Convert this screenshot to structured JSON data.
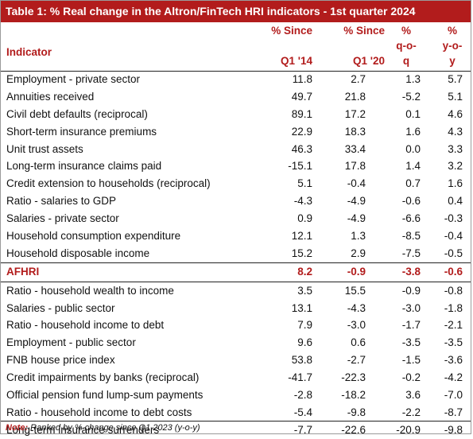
{
  "title": "Table 1: % Real change in the Altron/FinTech HRI indicators - 1st quarter 2024",
  "headers": {
    "indicator": "Indicator",
    "col1": [
      "% Since",
      "Q1 '14"
    ],
    "col2": [
      "% Since",
      "Q1 '20"
    ],
    "col3": [
      "%",
      "q-o-",
      "q"
    ],
    "col4": [
      "%",
      "y-o-",
      "y"
    ]
  },
  "rows_top": [
    {
      "name": "Employment - private sector",
      "v": [
        "11.8",
        "2.7",
        "1.3",
        "5.7"
      ]
    },
    {
      "name": "Annuities received",
      "v": [
        "49.7",
        "21.8",
        "-5.2",
        "5.1"
      ]
    },
    {
      "name": "Civil debt defaults (reciprocal)",
      "v": [
        "89.1",
        "17.2",
        "0.1",
        "4.6"
      ]
    },
    {
      "name": "Short-term insurance premiums",
      "v": [
        "22.9",
        "18.3",
        "1.6",
        "4.3"
      ]
    },
    {
      "name": "Unit trust assets",
      "v": [
        "46.3",
        "33.4",
        "0.0",
        "3.3"
      ]
    },
    {
      "name": "Long-term insurance claims paid",
      "v": [
        "-15.1",
        "17.8",
        "1.4",
        "3.2"
      ]
    },
    {
      "name": "Credit extension to households (reciprocal)",
      "v": [
        "5.1",
        "-0.4",
        "0.7",
        "1.6"
      ]
    },
    {
      "name": "Ratio - salaries to GDP",
      "v": [
        "-4.3",
        "-4.9",
        "-0.6",
        "0.4"
      ]
    },
    {
      "name": "Salaries - private sector",
      "v": [
        "0.9",
        "-4.9",
        "-6.6",
        "-0.3"
      ]
    },
    {
      "name": "Household consumption expenditure",
      "v": [
        "12.1",
        "1.3",
        "-8.5",
        "-0.4"
      ]
    },
    {
      "name": "Household disposable income",
      "v": [
        "15.2",
        "2.9",
        "-7.5",
        "-0.5"
      ]
    }
  ],
  "aggregate": {
    "name": "AFHRI",
    "v": [
      "8.2",
      "-0.9",
      "-3.8",
      "-0.6"
    ]
  },
  "rows_bottom": [
    {
      "name": "Ratio - household wealth to income",
      "v": [
        "3.5",
        "15.5",
        "-0.9",
        "-0.8"
      ]
    },
    {
      "name": "Salaries - public sector",
      "v": [
        "13.1",
        "-4.3",
        "-3.0",
        "-1.8"
      ]
    },
    {
      "name": "Ratio - household income to debt",
      "v": [
        "7.9",
        "-3.0",
        "-1.7",
        "-2.1"
      ]
    },
    {
      "name": "Employment - public sector",
      "v": [
        "9.6",
        "0.6",
        "-3.5",
        "-3.5"
      ]
    },
    {
      "name": "FNB house price index",
      "v": [
        "53.8",
        "-2.7",
        "-1.5",
        "-3.6"
      ]
    },
    {
      "name": "Credit impairments by banks (reciprocal)",
      "v": [
        "-41.7",
        "-22.3",
        "-0.2",
        "-4.2"
      ]
    },
    {
      "name": "Official pension fund lump-sum payments",
      "v": [
        "-2.8",
        "-18.2",
        "3.6",
        "-7.0"
      ]
    },
    {
      "name": "Ratio - household income to debt costs",
      "v": [
        "-5.4",
        "-9.8",
        "-2.2",
        "-8.7"
      ]
    },
    {
      "name": "Long-term insurance surrenders",
      "v": [
        "-7.7",
        "-22.6",
        "-20.9",
        "-9.8"
      ]
    }
  ],
  "note": {
    "label": "Note:",
    "text": "Ranked by % change since Q1 2023 (y-o-y)"
  }
}
